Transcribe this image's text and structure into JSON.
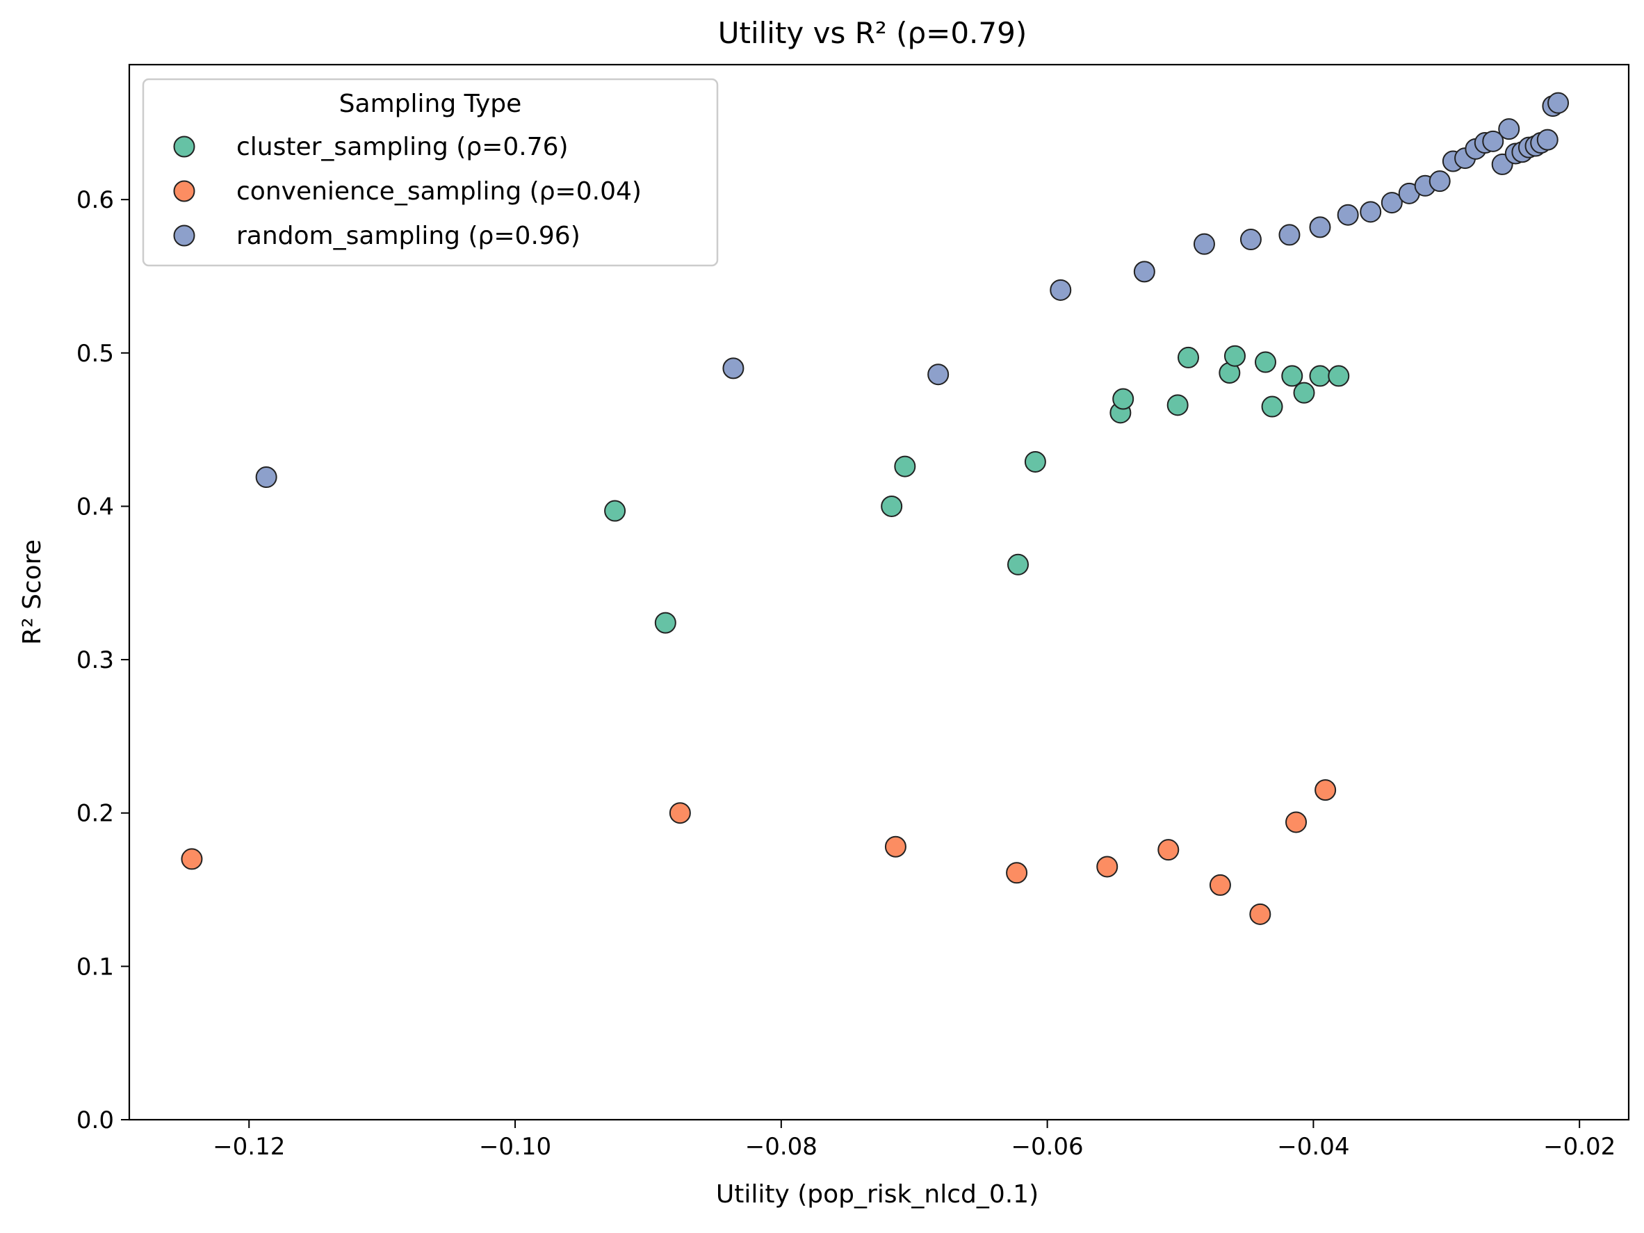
{
  "chart_data": {
    "type": "scatter",
    "title": "Utility vs R² (ρ=0.79)",
    "xlabel": "Utility (pop_risk_nlcd_0.1)",
    "ylabel": "R² Score",
    "xlim": [
      -0.129,
      -0.0163
    ],
    "ylim": [
      0.0,
      0.688
    ],
    "xticks": [
      {
        "value": -0.12,
        "label": "−0.12"
      },
      {
        "value": -0.1,
        "label": "−0.10"
      },
      {
        "value": -0.08,
        "label": "−0.08"
      },
      {
        "value": -0.06,
        "label": "−0.06"
      },
      {
        "value": -0.04,
        "label": "−0.04"
      },
      {
        "value": -0.02,
        "label": "−0.02"
      }
    ],
    "yticks": [
      {
        "value": 0.0,
        "label": "0.0"
      },
      {
        "value": 0.1,
        "label": "0.1"
      },
      {
        "value": 0.2,
        "label": "0.2"
      },
      {
        "value": 0.3,
        "label": "0.3"
      },
      {
        "value": 0.4,
        "label": "0.4"
      },
      {
        "value": 0.5,
        "label": "0.5"
      },
      {
        "value": 0.6,
        "label": "0.6"
      }
    ],
    "grid": false,
    "legend": {
      "title": "Sampling Type",
      "placement": "upper-left"
    },
    "series": [
      {
        "name": "cluster_sampling (ρ=0.76)",
        "color": "#66c2a5",
        "points": [
          [
            -0.0925,
            0.397
          ],
          [
            -0.0887,
            0.324
          ],
          [
            -0.0717,
            0.4
          ],
          [
            -0.0707,
            0.426
          ],
          [
            -0.0622,
            0.362
          ],
          [
            -0.0609,
            0.429
          ],
          [
            -0.0545,
            0.461
          ],
          [
            -0.0543,
            0.47
          ],
          [
            -0.0502,
            0.466
          ],
          [
            -0.0494,
            0.497
          ],
          [
            -0.0463,
            0.487
          ],
          [
            -0.0459,
            0.498
          ],
          [
            -0.0436,
            0.494
          ],
          [
            -0.0431,
            0.465
          ],
          [
            -0.0416,
            0.485
          ],
          [
            -0.0407,
            0.474
          ],
          [
            -0.0395,
            0.485
          ],
          [
            -0.0381,
            0.485
          ]
        ]
      },
      {
        "name": "convenience_sampling (ρ=0.04)",
        "color": "#fc8d62",
        "points": [
          [
            -0.1243,
            0.17
          ],
          [
            -0.0876,
            0.2
          ],
          [
            -0.0714,
            0.178
          ],
          [
            -0.0623,
            0.161
          ],
          [
            -0.0555,
            0.165
          ],
          [
            -0.0509,
            0.176
          ],
          [
            -0.047,
            0.153
          ],
          [
            -0.044,
            0.134
          ],
          [
            -0.0413,
            0.194
          ],
          [
            -0.0391,
            0.215
          ]
        ]
      },
      {
        "name": "random_sampling (ρ=0.96)",
        "color": "#8da0cb",
        "points": [
          [
            -0.1187,
            0.419
          ],
          [
            -0.0836,
            0.49
          ],
          [
            -0.0682,
            0.486
          ],
          [
            -0.059,
            0.541
          ],
          [
            -0.0527,
            0.553
          ],
          [
            -0.0482,
            0.571
          ],
          [
            -0.0447,
            0.574
          ],
          [
            -0.0418,
            0.577
          ],
          [
            -0.0395,
            0.582
          ],
          [
            -0.0374,
            0.59
          ],
          [
            -0.0357,
            0.592
          ],
          [
            -0.0341,
            0.598
          ],
          [
            -0.0328,
            0.604
          ],
          [
            -0.0316,
            0.609
          ],
          [
            -0.0305,
            0.612
          ],
          [
            -0.0295,
            0.625
          ],
          [
            -0.0286,
            0.627
          ],
          [
            -0.0278,
            0.633
          ],
          [
            -0.0271,
            0.637
          ],
          [
            -0.0265,
            0.638
          ],
          [
            -0.0258,
            0.623
          ],
          [
            -0.0253,
            0.646
          ],
          [
            -0.0248,
            0.63
          ],
          [
            -0.0243,
            0.631
          ],
          [
            -0.0238,
            0.634
          ],
          [
            -0.0233,
            0.635
          ],
          [
            -0.0229,
            0.637
          ],
          [
            -0.0224,
            0.639
          ],
          [
            -0.022,
            0.661
          ],
          [
            -0.0216,
            0.663
          ]
        ]
      }
    ]
  }
}
